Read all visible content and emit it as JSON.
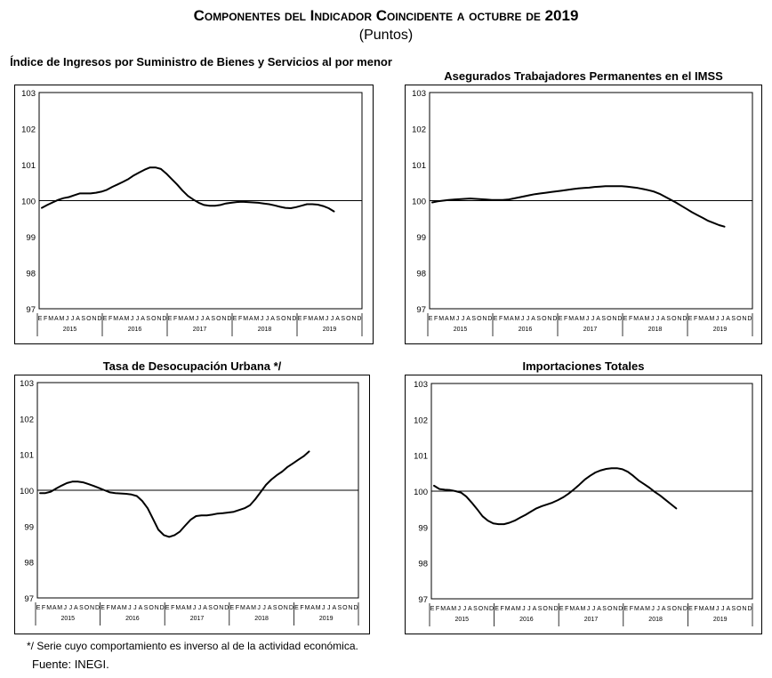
{
  "header": {
    "title": "Componentes del Indicador Coincidente a octubre de 2019",
    "subtitle": "(Puntos)"
  },
  "footer": {
    "footnote": "*/ Serie cuyo comportamiento es inverso al de la actividad económica.",
    "source": "Fuente: INEGI."
  },
  "chart_data": [
    {
      "type": "line",
      "title": "Índice de Ingresos por Suministro de Bienes y Servicios al por menor",
      "ylim": [
        97,
        103
      ],
      "yticks": [
        "97",
        "98",
        "99",
        "100",
        "101",
        "102",
        "103"
      ],
      "reference_line": 100,
      "month_labels": [
        "E",
        "F",
        "M",
        "A",
        "M",
        "J",
        "J",
        "A",
        "S",
        "O",
        "N",
        "D"
      ],
      "years": [
        "2015",
        "2016",
        "2017",
        "2018",
        "2019"
      ],
      "series": [
        {
          "name": "Índice de Ingresos por Suministro de Bienes y Servicios al por menor",
          "values": [
            99.8,
            99.88,
            99.95,
            100.02,
            100.07,
            100.1,
            100.15,
            100.2,
            100.2,
            100.2,
            100.22,
            100.25,
            100.3,
            100.38,
            100.45,
            100.52,
            100.6,
            100.7,
            100.78,
            100.86,
            100.92,
            100.92,
            100.88,
            100.75,
            100.6,
            100.45,
            100.28,
            100.13,
            100.03,
            99.94,
            99.88,
            99.86,
            99.86,
            99.88,
            99.92,
            99.94,
            99.96,
            99.97,
            99.96,
            99.95,
            99.94,
            99.92,
            99.9,
            99.87,
            99.83,
            99.8,
            99.79,
            99.82,
            99.86,
            99.9,
            99.9,
            99.89,
            99.85,
            99.79,
            99.7
          ]
        }
      ]
    },
    {
      "type": "line",
      "title": "Asegurados Trabajadores Permanentes en el IMSS",
      "ylim": [
        97,
        103
      ],
      "yticks": [
        "97",
        "98",
        "99",
        "100",
        "101",
        "102",
        "103"
      ],
      "reference_line": 100,
      "month_labels": [
        "E",
        "F",
        "M",
        "A",
        "M",
        "J",
        "J",
        "A",
        "S",
        "O",
        "N",
        "D"
      ],
      "years": [
        "2015",
        "2016",
        "2017",
        "2018",
        "2019"
      ],
      "series": [
        {
          "name": "Asegurados Trabajadores Permanentes en el IMSS",
          "values": [
            99.95,
            99.98,
            100.0,
            100.02,
            100.03,
            100.04,
            100.05,
            100.06,
            100.05,
            100.04,
            100.03,
            100.02,
            100.02,
            100.02,
            100.03,
            100.06,
            100.09,
            100.12,
            100.15,
            100.18,
            100.2,
            100.22,
            100.24,
            100.26,
            100.28,
            100.3,
            100.32,
            100.34,
            100.35,
            100.36,
            100.38,
            100.39,
            100.4,
            100.4,
            100.4,
            100.4,
            100.39,
            100.37,
            100.35,
            100.32,
            100.29,
            100.25,
            100.19,
            100.11,
            100.03,
            99.95,
            99.86,
            99.77,
            99.68,
            99.6,
            99.52,
            99.44,
            99.38,
            99.32,
            99.28
          ]
        }
      ]
    },
    {
      "type": "line",
      "title": "Tasa de Desocupación Urbana */",
      "ylim": [
        97,
        103
      ],
      "yticks": [
        "97",
        "98",
        "99",
        "100",
        "101",
        "102",
        "103"
      ],
      "reference_line": 100,
      "month_labels": [
        "E",
        "F",
        "M",
        "A",
        "M",
        "J",
        "J",
        "A",
        "S",
        "O",
        "N",
        "D"
      ],
      "years": [
        "2015",
        "2016",
        "2017",
        "2018",
        "2019"
      ],
      "series": [
        {
          "name": "Tasa de Desocupación Urbana",
          "values": [
            99.92,
            99.92,
            99.96,
            100.05,
            100.13,
            100.2,
            100.24,
            100.24,
            100.22,
            100.17,
            100.12,
            100.06,
            100.0,
            99.94,
            99.92,
            99.91,
            99.9,
            99.88,
            99.84,
            99.7,
            99.5,
            99.2,
            98.9,
            98.75,
            98.7,
            98.75,
            98.85,
            99.02,
            99.18,
            99.28,
            99.3,
            99.3,
            99.32,
            99.35,
            99.36,
            99.38,
            99.4,
            99.45,
            99.5,
            99.58,
            99.75,
            99.95,
            100.15,
            100.3,
            100.42,
            100.52,
            100.65,
            100.75,
            100.85,
            100.95,
            101.08
          ]
        }
      ]
    },
    {
      "type": "line",
      "title": "Importaciones Totales",
      "ylim": [
        97,
        103
      ],
      "yticks": [
        "97",
        "98",
        "99",
        "100",
        "101",
        "102",
        "103"
      ],
      "reference_line": 100,
      "month_labels": [
        "E",
        "F",
        "M",
        "A",
        "M",
        "J",
        "J",
        "A",
        "S",
        "O",
        "N",
        "D"
      ],
      "years": [
        "2015",
        "2016",
        "2017",
        "2018",
        "2019"
      ],
      "series": [
        {
          "name": "Importaciones Totales",
          "values": [
            100.15,
            100.06,
            100.04,
            100.03,
            100.0,
            99.96,
            99.85,
            99.68,
            99.5,
            99.3,
            99.18,
            99.1,
            99.08,
            99.08,
            99.12,
            99.18,
            99.26,
            99.34,
            99.43,
            99.52,
            99.58,
            99.63,
            99.68,
            99.75,
            99.83,
            99.93,
            100.05,
            100.18,
            100.32,
            100.43,
            100.52,
            100.58,
            100.62,
            100.64,
            100.64,
            100.61,
            100.54,
            100.43,
            100.3,
            100.2,
            100.1,
            99.98,
            99.88,
            99.76,
            99.64,
            99.52
          ]
        }
      ]
    }
  ]
}
